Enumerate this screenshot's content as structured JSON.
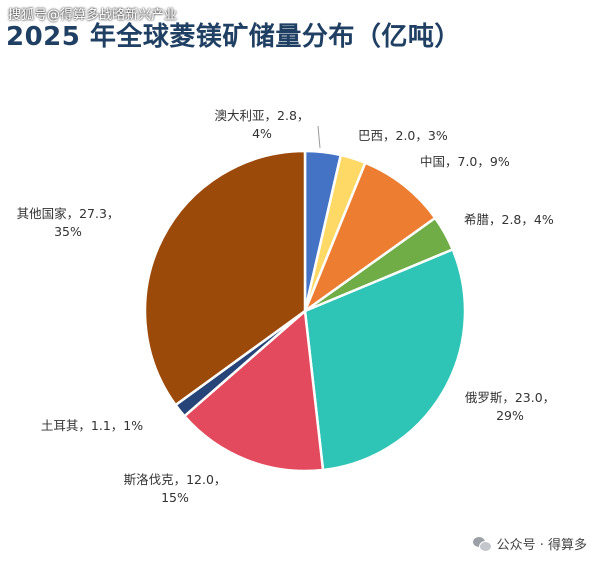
{
  "watermark": "搜狐号@得算多战略新兴产业",
  "footer_watermark": "公众号 · 得算多",
  "chart_data": {
    "type": "pie",
    "title": "2025 年全球菱镁矿储量分布（亿吨）",
    "start_angle_deg": 0,
    "slices": [
      {
        "name": "澳大利亚",
        "value": 2.8,
        "percent": "4%",
        "color": "#4472c4",
        "label_lines": [
          "澳大利亚，2.8，",
          "4%"
        ]
      },
      {
        "name": "巴西",
        "value": 2.0,
        "percent": "3%",
        "color": "#ffd966",
        "label_lines": [
          "巴西，2.0，3%"
        ]
      },
      {
        "name": "中国",
        "value": 7.0,
        "percent": "9%",
        "color": "#ed7d31",
        "label_lines": [
          "中国，7.0，9%"
        ]
      },
      {
        "name": "希腊",
        "value": 2.8,
        "percent": "4%",
        "color": "#70ad47",
        "label_lines": [
          "希腊，2.8，4%"
        ]
      },
      {
        "name": "俄罗斯",
        "value": 23.0,
        "percent": "29%",
        "color": "#2ec4b6",
        "label_lines": [
          "俄罗斯，23.0，",
          "29%"
        ]
      },
      {
        "name": "斯洛伐克",
        "value": 12.0,
        "percent": "15%",
        "color": "#e34a5e",
        "label_lines": [
          "斯洛伐克，12.0，",
          "15%"
        ]
      },
      {
        "name": "土耳其",
        "value": 1.1,
        "percent": "1%",
        "color": "#264478",
        "label_lines": [
          "土耳其，1.1，1%"
        ]
      },
      {
        "name": "其他国家",
        "value": 27.3,
        "percent": "35%",
        "color": "#9c4a0a",
        "label_lines": [
          "其他国家，27.3，",
          "35%"
        ]
      }
    ]
  }
}
